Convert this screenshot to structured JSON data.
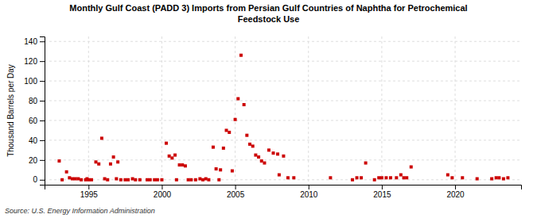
{
  "chart_data": {
    "type": "scatter",
    "title": "Monthly Gulf Coast (PADD 3) Imports from Persian Gulf Countries of Naphtha for Petrochemical\nFeedstock Use",
    "ylabel": "Thousand Barrels per Day",
    "source": "Source: U.S. Energy Information Administration",
    "color": "#cc0000",
    "marker": "square",
    "grid": true,
    "xlim": [
      1992.0,
      2024.5
    ],
    "ylim": [
      -5,
      145
    ],
    "xticks": [
      1995,
      2000,
      2005,
      2010,
      2015,
      2020
    ],
    "yticks": [
      0,
      20,
      40,
      60,
      80,
      100,
      120,
      140
    ],
    "x": [
      1993.0,
      1993.2,
      1993.5,
      1993.7,
      1993.9,
      1994.1,
      1994.3,
      1994.5,
      1994.8,
      1994.9,
      1995.0,
      1995.2,
      1995.5,
      1995.7,
      1995.9,
      1996.1,
      1996.3,
      1996.5,
      1996.7,
      1996.9,
      1997.0,
      1997.2,
      1997.5,
      1997.7,
      1998.0,
      1998.2,
      1998.5,
      1999.0,
      1999.2,
      1999.5,
      1999.7,
      2000.0,
      2000.3,
      2000.5,
      2000.7,
      2000.9,
      2001.0,
      2001.2,
      2001.4,
      2001.6,
      2001.8,
      2002.0,
      2002.3,
      2002.6,
      2002.8,
      2003.0,
      2003.2,
      2003.5,
      2003.7,
      2003.9,
      2004.0,
      2004.2,
      2004.4,
      2004.6,
      2004.8,
      2005.0,
      2005.2,
      2005.4,
      2005.6,
      2005.8,
      2006.0,
      2006.2,
      2006.4,
      2006.6,
      2006.8,
      2007.0,
      2007.3,
      2007.6,
      2007.9,
      2008.0,
      2008.3,
      2008.6,
      2009.0,
      2011.5,
      2013.0,
      2013.3,
      2013.6,
      2013.9,
      2014.5,
      2014.8,
      2015.0,
      2015.3,
      2015.6,
      2016.0,
      2016.3,
      2016.5,
      2016.7,
      2017.0,
      2019.5,
      2019.8,
      2020.5,
      2021.5,
      2022.5,
      2022.8,
      2023.0,
      2023.3,
      2023.6
    ],
    "values": [
      19,
      0,
      8,
      2,
      1,
      1,
      1,
      0,
      0,
      1,
      0,
      0,
      18,
      16,
      42,
      1,
      0,
      16,
      23,
      1,
      18,
      0,
      0,
      0,
      1,
      0,
      0,
      0,
      0,
      0,
      0,
      0,
      37,
      24,
      22,
      25,
      0,
      15,
      15,
      14,
      0,
      0,
      0,
      1,
      0,
      1,
      0,
      33,
      11,
      0,
      10,
      32,
      50,
      48,
      9,
      61,
      82,
      126,
      76,
      45,
      36,
      34,
      25,
      23,
      19,
      17,
      30,
      27,
      26,
      5,
      24,
      2,
      2,
      2,
      0,
      2,
      2,
      17,
      0,
      2,
      2,
      2,
      2,
      2,
      5,
      2,
      2,
      13,
      5,
      2,
      2,
      1,
      1,
      2,
      2,
      1,
      2
    ]
  }
}
